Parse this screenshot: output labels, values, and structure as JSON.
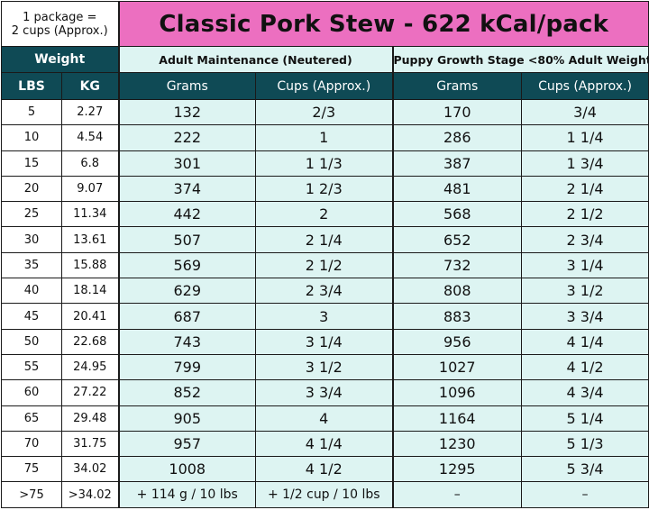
{
  "header": {
    "package_note_line1": "1 package =",
    "package_note_line2": "2 cups (Approx.)",
    "title": "Classic Pork Stew - 622 kCal/pack"
  },
  "columns": {
    "weight": "Weight",
    "lbs": "LBS",
    "kg": "KG",
    "adult_group": "Adult Maintenance (Neutered)",
    "puppy_group": "Puppy Growth Stage <80% Adult Weight",
    "adult_grams": "Grams",
    "adult_cups": "Cups (Approx.)",
    "puppy_grams": "Grams",
    "puppy_cups": "Cups (Approx.)"
  },
  "rows": [
    {
      "lbs": "5",
      "kg": "2.27",
      "adult_grams": "132",
      "adult_cups": "2/3",
      "puppy_grams": "170",
      "puppy_cups": "3/4"
    },
    {
      "lbs": "10",
      "kg": "4.54",
      "adult_grams": "222",
      "adult_cups": "1",
      "puppy_grams": "286",
      "puppy_cups": "1 1/4"
    },
    {
      "lbs": "15",
      "kg": "6.8",
      "adult_grams": "301",
      "adult_cups": "1 1/3",
      "puppy_grams": "387",
      "puppy_cups": "1 3/4"
    },
    {
      "lbs": "20",
      "kg": "9.07",
      "adult_grams": "374",
      "adult_cups": "1 2/3",
      "puppy_grams": "481",
      "puppy_cups": "2 1/4"
    },
    {
      "lbs": "25",
      "kg": "11.34",
      "adult_grams": "442",
      "adult_cups": "2",
      "puppy_grams": "568",
      "puppy_cups": "2 1/2"
    },
    {
      "lbs": "30",
      "kg": "13.61",
      "adult_grams": "507",
      "adult_cups": "2 1/4",
      "puppy_grams": "652",
      "puppy_cups": "2 3/4"
    },
    {
      "lbs": "35",
      "kg": "15.88",
      "adult_grams": "569",
      "adult_cups": "2 1/2",
      "puppy_grams": "732",
      "puppy_cups": "3 1/4"
    },
    {
      "lbs": "40",
      "kg": "18.14",
      "adult_grams": "629",
      "adult_cups": "2 3/4",
      "puppy_grams": "808",
      "puppy_cups": "3 1/2"
    },
    {
      "lbs": "45",
      "kg": "20.41",
      "adult_grams": "687",
      "adult_cups": "3",
      "puppy_grams": "883",
      "puppy_cups": "3 3/4"
    },
    {
      "lbs": "50",
      "kg": "22.68",
      "adult_grams": "743",
      "adult_cups": "3 1/4",
      "puppy_grams": "956",
      "puppy_cups": "4 1/4"
    },
    {
      "lbs": "55",
      "kg": "24.95",
      "adult_grams": "799",
      "adult_cups": "3 1/2",
      "puppy_grams": "1027",
      "puppy_cups": "4 1/2"
    },
    {
      "lbs": "60",
      "kg": "27.22",
      "adult_grams": "852",
      "adult_cups": "3 3/4",
      "puppy_grams": "1096",
      "puppy_cups": "4 3/4"
    },
    {
      "lbs": "65",
      "kg": "29.48",
      "adult_grams": "905",
      "adult_cups": "4",
      "puppy_grams": "1164",
      "puppy_cups": "5 1/4"
    },
    {
      "lbs": "70",
      "kg": "31.75",
      "adult_grams": "957",
      "adult_cups": "4 1/4",
      "puppy_grams": "1230",
      "puppy_cups": "5 1/3"
    },
    {
      "lbs": "75",
      "kg": "34.02",
      "adult_grams": "1008",
      "adult_cups": "4 1/2",
      "puppy_grams": "1295",
      "puppy_cups": "5 3/4"
    },
    {
      "lbs": ">75",
      "kg": ">34.02",
      "adult_grams": "+ 114 g / 10 lbs",
      "adult_cups": "+ 1/2 cup / 10 lbs",
      "puppy_grams": "–",
      "puppy_cups": "–"
    }
  ],
  "colors": {
    "title_bg": "#ec6fc0",
    "dark_header_bg": "#0f4a55",
    "light_cell_bg": "#ddf4f2",
    "weight_cell_bg": "#ffffff"
  }
}
